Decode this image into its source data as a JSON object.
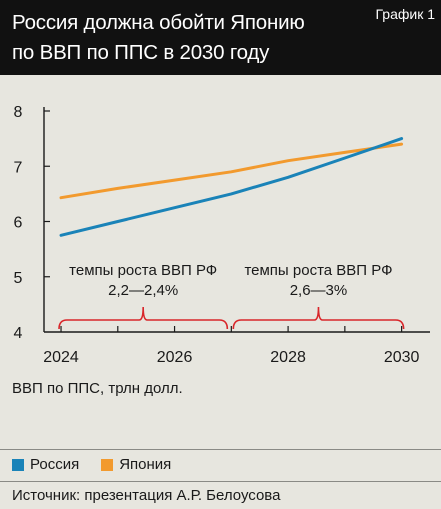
{
  "header": {
    "title_line1": "Россия должна обойти Японию",
    "title_line2": "по ВВП по ППС в 2030 году",
    "tag": "График 1"
  },
  "chart_data": {
    "type": "line",
    "x": [
      2024,
      2025,
      2026,
      2027,
      2028,
      2029,
      2030
    ],
    "series": [
      {
        "name": "Россия",
        "color": "#1a83b8",
        "values": [
          5.75,
          6.0,
          6.25,
          6.5,
          6.8,
          7.15,
          7.5
        ]
      },
      {
        "name": "Япония",
        "color": "#f29a2e",
        "values": [
          6.43,
          6.6,
          6.75,
          6.9,
          7.1,
          7.25,
          7.4
        ]
      }
    ],
    "xticks": [
      "2024",
      "2026",
      "2028",
      "2030"
    ],
    "yticks": [
      "4",
      "5",
      "6",
      "7",
      "8"
    ],
    "xlim": [
      2023.7,
      2030.5
    ],
    "ylim": [
      4,
      8
    ],
    "ylabel": "ВВП по ППС, трлн долл.",
    "annotations": [
      {
        "line1": "темпы роста ВВП РФ",
        "line2": "2,2—2,4%",
        "x_from": 2024,
        "x_to": 2027
      },
      {
        "line1": "темпы роста ВВП РФ",
        "line2": "2,6—3%",
        "x_from": 2027,
        "x_to": 2030
      }
    ],
    "bracket_color": "#d9262a",
    "grid": false
  },
  "legend": [
    {
      "label": "Россия",
      "color": "#1a83b8"
    },
    {
      "label": "Япония",
      "color": "#f29a2e"
    }
  ],
  "source": "Источник: презентация А.Р. Белоусова"
}
